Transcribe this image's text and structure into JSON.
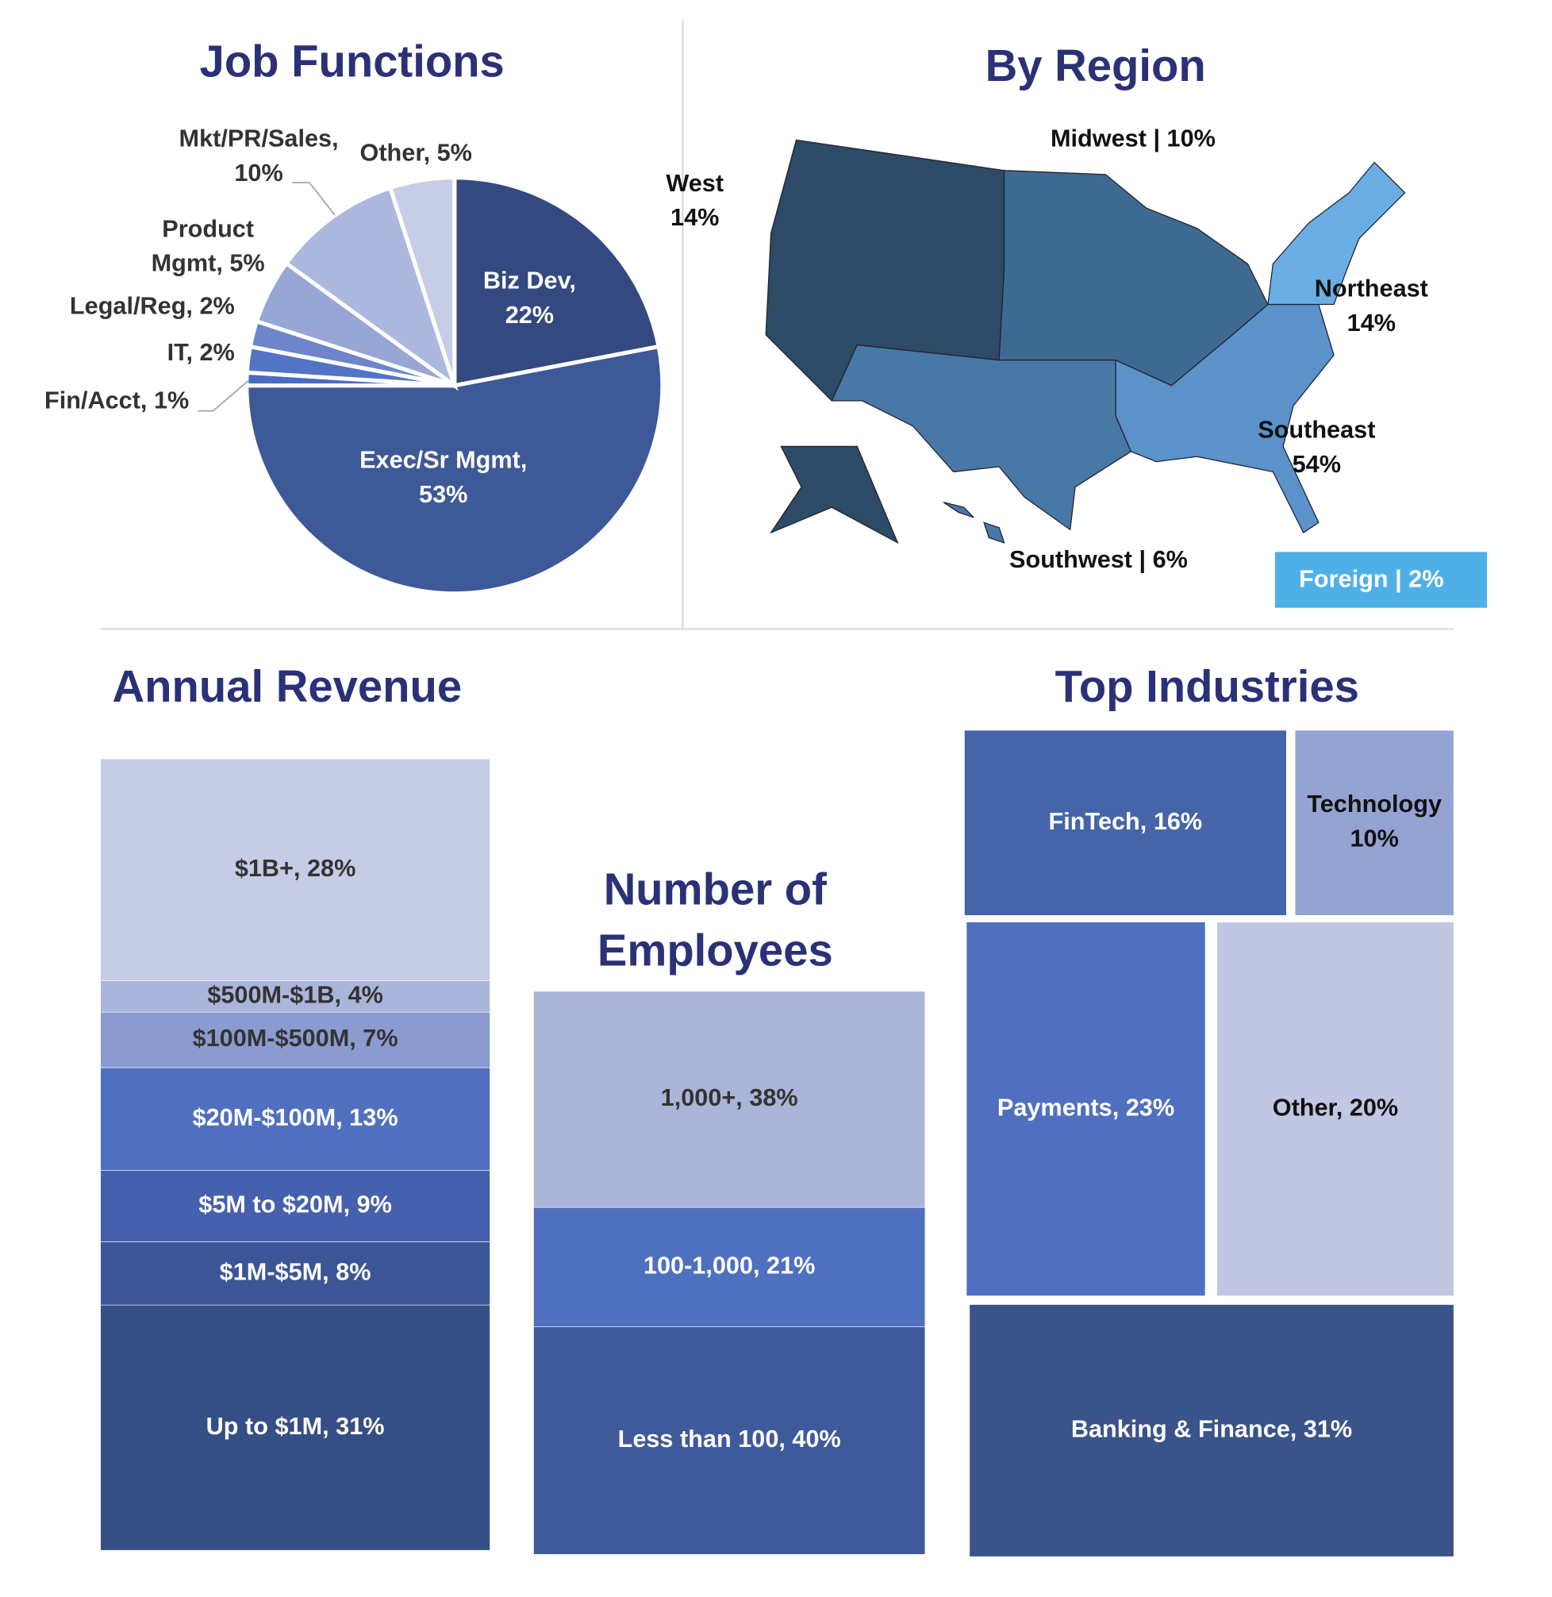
{
  "chart_data": [
    {
      "type": "pie",
      "title": "Job Functions",
      "categories": [
        "Biz Dev",
        "Exec/Sr Mgmt",
        "Fin/Acct",
        "IT",
        "Legal/Reg",
        "Product Mgmt",
        "Mkt/PR/Sales",
        "Other"
      ],
      "values": [
        22,
        53,
        1,
        2,
        2,
        5,
        10,
        5
      ],
      "value_labels": [
        [
          "Biz Dev,",
          "22%"
        ],
        [
          "Exec/Sr Mgmt,",
          "53%"
        ],
        [
          "Fin/Acct, 1%"
        ],
        [
          "IT, 2%"
        ],
        [
          "Legal/Reg, 2%"
        ],
        [
          "Product",
          "Mgmt, 5%"
        ],
        [
          "Mkt/PR/Sales,",
          "10%"
        ],
        [
          "Other, 5%"
        ]
      ],
      "colors": [
        "#34497f",
        "#3d5997",
        "#4a6bc0",
        "#5373c4",
        "#6c85cb",
        "#98a6d6",
        "#adb8de",
        "#c7cde6"
      ]
    },
    {
      "type": "map",
      "title": "By Region",
      "categories": [
        "West",
        "Midwest",
        "Southwest",
        "Southeast",
        "Northeast",
        "Foreign"
      ],
      "values": [
        14,
        10,
        6,
        54,
        14,
        2
      ],
      "value_labels": [
        [
          "West",
          "14%"
        ],
        [
          "Midwest | 10%"
        ],
        [
          "Southwest | 6%"
        ],
        [
          "Southeast",
          "54%"
        ],
        [
          "Northeast",
          "14%"
        ],
        [
          "Foreign | 2%"
        ]
      ],
      "colors": [
        "#2d4a66",
        "#3e6a92",
        "#4878a5",
        "#5a92c9",
        "#6aaee4",
        "#4fb0e8"
      ]
    },
    {
      "type": "stacked",
      "title": "Annual Revenue",
      "categories": [
        "Up to $1M",
        "$1M-$5M",
        "$5M to $20M",
        "$20M-$100M",
        "$100M-$500M",
        "$500M-$1B",
        "$1B+"
      ],
      "values": [
        31,
        8,
        9,
        13,
        7,
        4,
        28
      ],
      "value_labels": [
        "Up to $1M, 31%",
        "$1M-$5M, 8%",
        "$5M to $20M, 9%",
        "$20M-$100M, 13%",
        "$100M-$500M, 7%",
        "$500M-$1B, 4%",
        "$1B+, 28%"
      ],
      "colors": [
        "#364e86",
        "#3b5596",
        "#4560ad",
        "#5070bf",
        "#8b9bd0",
        "#aab5db",
        "#c6cce6"
      ]
    },
    {
      "type": "stacked",
      "title": [
        "Number of",
        "Employees"
      ],
      "categories": [
        "Less than 100",
        "100-1,000",
        "1,000+"
      ],
      "values": [
        40,
        21,
        38
      ],
      "value_labels": [
        "Less than 100, 40%",
        "100-1,000, 21%",
        "1,000+, 38%"
      ],
      "colors": [
        "#3f5a9a",
        "#4f70bf",
        "#abb5d9"
      ]
    },
    {
      "type": "treemap",
      "title": "Top Industries",
      "categories": [
        "FinTech",
        "Technology",
        "Payments",
        "Other",
        "Banking & Finance"
      ],
      "values": [
        16,
        10,
        23,
        20,
        31
      ],
      "value_labels": [
        [
          "FinTech, 16%"
        ],
        [
          "Technology",
          "10%"
        ],
        [
          "Payments, 23%"
        ],
        [
          "Other, 20%"
        ],
        [
          "Banking & Finance, 31%"
        ]
      ],
      "colors": [
        "#4565a8",
        "#95a3d3",
        "#5070bf",
        "#c1c7e3",
        "#3a5389"
      ]
    }
  ]
}
